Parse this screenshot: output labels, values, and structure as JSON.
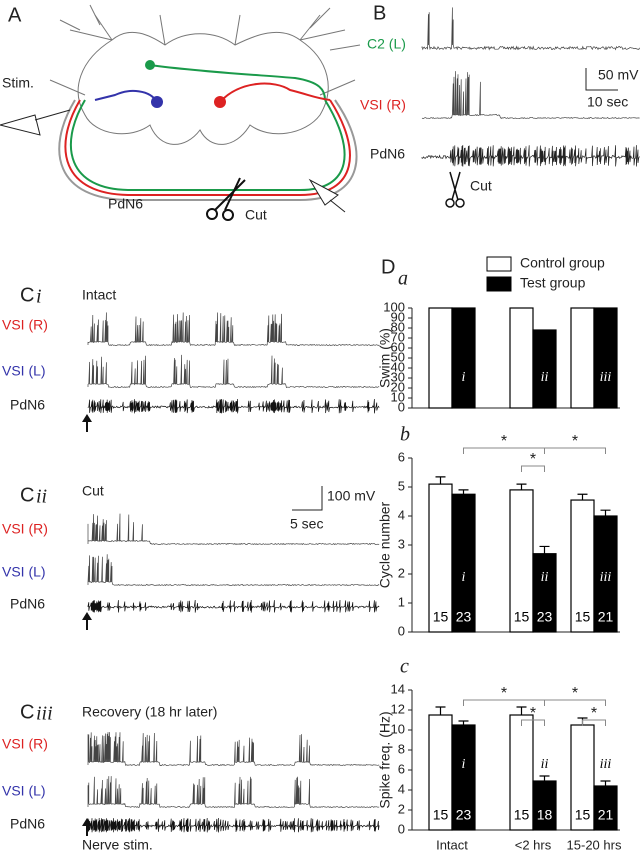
{
  "panel_a": {
    "label": "A",
    "stim": "Stim.",
    "nerve": "PdN6",
    "cut": "Cut"
  },
  "panel_b": {
    "label": "B",
    "traces": [
      "C2 (L)",
      "VSI (R)",
      "PdN6"
    ],
    "scale_v": "50 mV",
    "scale_t": "10 sec",
    "cut": "Cut"
  },
  "panel_c": [
    {
      "label": "C",
      "sublabel": "i",
      "condition": "Intact",
      "traces": [
        "VSI (R)",
        "VSI (L)",
        "PdN6"
      ]
    },
    {
      "label": "C",
      "sublabel": "ii",
      "condition": "Cut",
      "traces": [
        "VSI (R)",
        "VSI (L)",
        "PdN6"
      ],
      "scale_v": "100 mV",
      "scale_t": "5 sec"
    },
    {
      "label": "C",
      "sublabel": "iii",
      "condition": "Recovery (18 hr later)",
      "traces": [
        "VSI (R)",
        "VSI (L)",
        "PdN6"
      ],
      "stim": "Nerve stim."
    }
  ],
  "panel_d": {
    "label": "D"
  },
  "chart_data": [
    {
      "type": "bar",
      "sublabel": "a",
      "y_label": "Swim (%)",
      "ylim": [
        0,
        100
      ],
      "yticks": [
        0,
        10,
        20,
        30,
        40,
        50,
        60,
        70,
        80,
        90,
        100
      ],
      "bar_labels": [
        "i",
        "ii",
        "iii"
      ],
      "series": [
        {
          "name": "Control group",
          "color": "#ffffff",
          "values": [
            100,
            100,
            100
          ]
        },
        {
          "name": "Test group",
          "color": "#000000",
          "values": [
            100,
            78,
            100
          ]
        }
      ]
    },
    {
      "type": "bar",
      "sublabel": "b",
      "y_label": "Cycle number",
      "ylim": [
        0,
        6
      ],
      "yticks": [
        0,
        1,
        2,
        3,
        4,
        5,
        6
      ],
      "bar_labels": [
        "i",
        "ii",
        "iii"
      ],
      "annotations": [
        "*",
        "*",
        "*"
      ],
      "series": [
        {
          "color": "#ffffff",
          "values": [
            5.1,
            4.9,
            4.55
          ],
          "errors": [
            0.25,
            0.2,
            0.2
          ],
          "n": [
            15,
            15,
            15
          ]
        },
        {
          "color": "#000000",
          "values": [
            4.75,
            2.7,
            4.0
          ],
          "errors": [
            0.15,
            0.25,
            0.2
          ],
          "n": [
            23,
            23,
            21
          ]
        }
      ]
    },
    {
      "type": "bar",
      "sublabel": "c",
      "y_label": "Spike freq. (Hz)",
      "ylim": [
        0,
        14
      ],
      "yticks": [
        0,
        2,
        4,
        6,
        8,
        10,
        12,
        14
      ],
      "categories": [
        "Intact",
        "<2 hrs",
        "15-20 hrs"
      ],
      "bar_labels": [
        "i",
        "ii",
        "iii"
      ],
      "annotations": [
        "*",
        "*",
        "*",
        "*"
      ],
      "series": [
        {
          "color": "#ffffff",
          "values": [
            11.5,
            11.5,
            10.5
          ],
          "errors": [
            0.8,
            0.8,
            0.7
          ],
          "n": [
            15,
            15,
            15
          ]
        },
        {
          "color": "#000000",
          "values": [
            10.5,
            4.9,
            4.4
          ],
          "errors": [
            0.4,
            0.5,
            0.5
          ],
          "n": [
            23,
            18,
            21
          ]
        }
      ]
    }
  ]
}
